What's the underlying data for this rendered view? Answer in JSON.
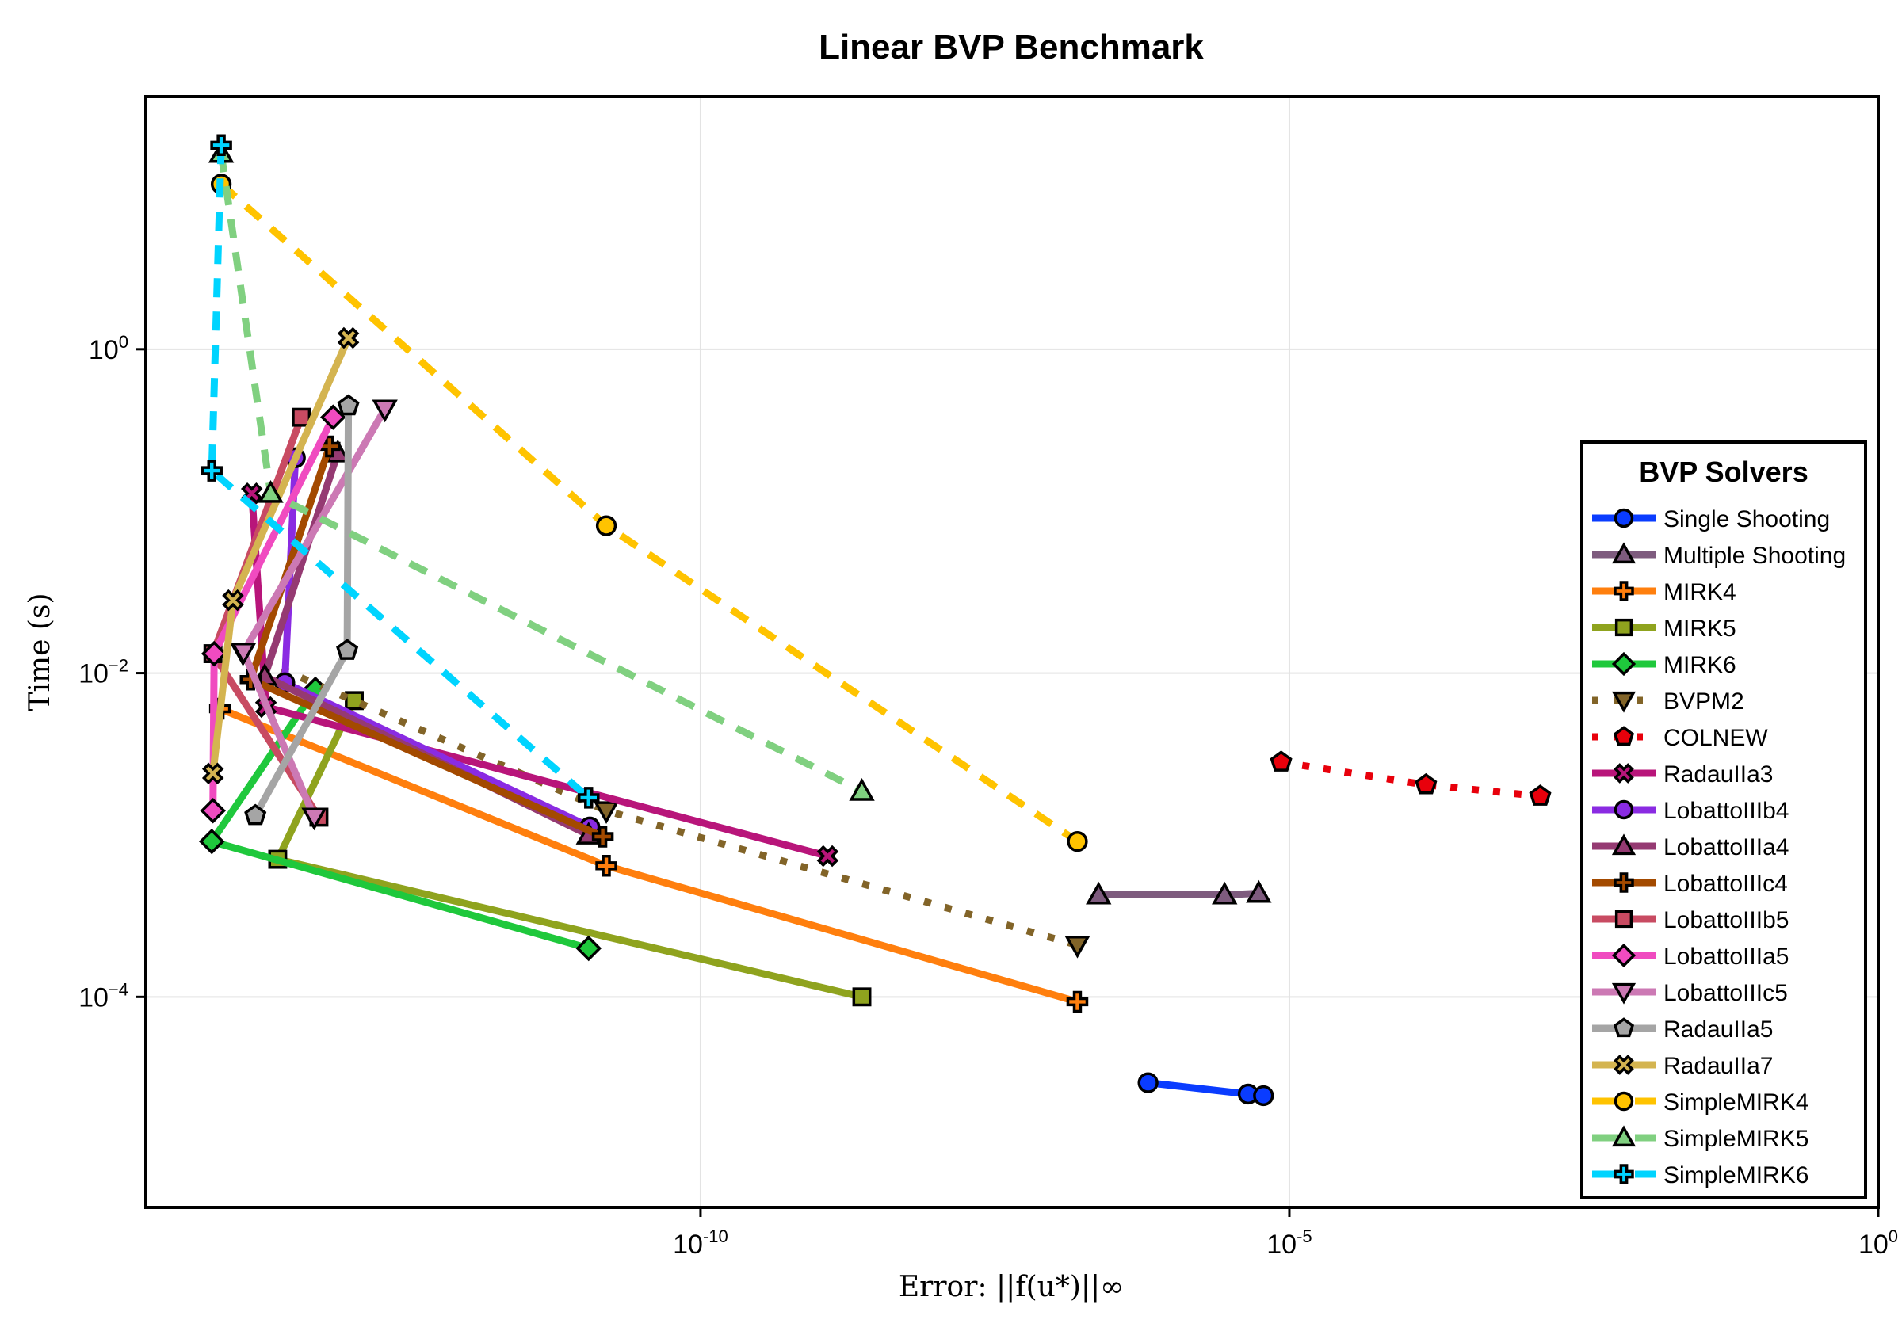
{
  "chart_data": {
    "type": "line",
    "title": "Linear BVP Benchmark",
    "xlabel": "Error: ||f(u*)||∞",
    "ylabel": "Time (s)",
    "xscale": "log10",
    "yscale": "log10",
    "xlim_log10": [
      -14.71,
      0
    ],
    "ylim_log10": [
      -5.3,
      1.56
    ],
    "x_ticks": [
      {
        "exp": -10,
        "base": "10",
        "sup": "-10"
      },
      {
        "exp": -5,
        "base": "10",
        "sup": "-5"
      },
      {
        "exp": 0,
        "base": "10",
        "sup": "0"
      }
    ],
    "y_ticks": [
      {
        "exp": 0,
        "base": "10",
        "sup": "0"
      },
      {
        "exp": -2,
        "base": "10",
        "sup": "−2"
      },
      {
        "exp": -4,
        "base": "10",
        "sup": "−4"
      }
    ],
    "grid": true,
    "legend": {
      "title": "BVP Solvers",
      "position": "right"
    },
    "series": [
      {
        "name": "Single Shooting",
        "color": "#0a3cff",
        "dash": "solid",
        "marker": "circle",
        "log10_x": [
          -6.2,
          -5.35,
          -5.22
        ],
        "log10_y": [
          -4.53,
          -4.6,
          -4.61
        ]
      },
      {
        "name": "Multiple Shooting",
        "color": "#7e5b7e",
        "dash": "solid",
        "marker": "triangle-up",
        "log10_x": [
          -6.62,
          -5.55,
          -5.26
        ],
        "log10_y": [
          -3.37,
          -3.37,
          -3.36
        ]
      },
      {
        "name": "MIRK4",
        "color": "#ff7f0e",
        "dash": "solid",
        "marker": "cross",
        "log10_x": [
          -14.08,
          -10.8,
          -6.8
        ],
        "log10_y": [
          -2.22,
          -3.19,
          -4.03
        ]
      },
      {
        "name": "MIRK5",
        "color": "#8fa31e",
        "dash": "solid",
        "marker": "square",
        "log10_x": [
          -12.94,
          -13.59,
          -8.63
        ],
        "log10_y": [
          -2.17,
          -3.15,
          -4.0
        ]
      },
      {
        "name": "MIRK6",
        "color": "#1fc83c",
        "dash": "solid",
        "marker": "diamond",
        "log10_x": [
          -13.27,
          -14.15,
          -10.95
        ],
        "log10_y": [
          -2.1,
          -3.04,
          -3.7
        ]
      },
      {
        "name": "BVPM2",
        "color": "#826428",
        "dash": "dot",
        "marker": "triangle-down",
        "log10_x": [
          -13.89,
          -10.8,
          -6.8
        ],
        "log10_y": [
          -1.87,
          -2.85,
          -3.68
        ]
      },
      {
        "name": "COLNEW",
        "color": "#e8000b",
        "dash": "dot",
        "marker": "pentagon",
        "log10_x": [
          -5.07,
          -3.84,
          -2.87
        ],
        "log10_y": [
          -2.55,
          -2.69,
          -2.76
        ]
      },
      {
        "name": "RadauIIa3",
        "color": "#b8157a",
        "dash": "solid",
        "marker": "x",
        "log10_x": [
          -13.81,
          -13.69,
          -8.92
        ],
        "log10_y": [
          -0.89,
          -2.21,
          -3.13
        ]
      },
      {
        "name": "LobattoIIIb4",
        "color": "#8a2be2",
        "dash": "solid",
        "marker": "circle",
        "log10_x": [
          -13.44,
          -13.53,
          -10.94
        ],
        "log10_y": [
          -0.67,
          -2.06,
          -2.95
        ]
      },
      {
        "name": "LobattoIIIa4",
        "color": "#953a72",
        "dash": "solid",
        "marker": "triangle-up",
        "log10_x": [
          -13.08,
          -13.7,
          -10.95
        ],
        "log10_y": [
          -0.64,
          -2.02,
          -3.0
        ]
      },
      {
        "name": "LobattoIIIc4",
        "color": "#a34a00",
        "dash": "solid",
        "marker": "cross",
        "log10_x": [
          -13.15,
          -13.82,
          -10.83
        ],
        "log10_y": [
          -0.6,
          -2.04,
          -3.01
        ]
      },
      {
        "name": "LobattoIIIb5",
        "color": "#c84b62",
        "dash": "solid",
        "marker": "square",
        "log10_x": [
          -13.39,
          -14.14,
          -13.24
        ],
        "log10_y": [
          -0.42,
          -1.88,
          -2.89
        ]
      },
      {
        "name": "LobattoIIIa5",
        "color": "#f04bc0",
        "dash": "solid",
        "marker": "diamond",
        "log10_x": [
          -13.12,
          -14.13,
          -14.14
        ],
        "log10_y": [
          -0.42,
          -1.88,
          -2.85
        ]
      },
      {
        "name": "LobattoIIIc5",
        "color": "#cc79b4",
        "dash": "solid",
        "marker": "triangle-down",
        "log10_x": [
          -12.68,
          -13.88,
          -13.28
        ],
        "log10_y": [
          -0.37,
          -1.87,
          -2.89
        ]
      },
      {
        "name": "RadauIIa5",
        "color": "#a5a5a5",
        "dash": "solid",
        "marker": "pentagon",
        "log10_x": [
          -12.99,
          -13.0,
          -13.78
        ],
        "log10_y": [
          -0.35,
          -1.86,
          -2.88
        ]
      },
      {
        "name": "RadauIIa7",
        "color": "#d4b450",
        "dash": "solid",
        "marker": "x",
        "log10_x": [
          -12.99,
          -13.97,
          -14.14
        ],
        "log10_y": [
          0.07,
          -1.55,
          -2.62
        ]
      },
      {
        "name": "SimpleMIRK4",
        "color": "#ffc300",
        "dash": "dash",
        "marker": "circle",
        "log10_x": [
          -14.07,
          -10.8,
          -6.8
        ],
        "log10_y": [
          1.02,
          -1.09,
          -3.04
        ]
      },
      {
        "name": "SimpleMIRK5",
        "color": "#80d080",
        "dash": "dash",
        "marker": "triangle-up",
        "log10_x": [
          -14.07,
          -13.65,
          -8.63
        ],
        "log10_y": [
          1.21,
          -0.89,
          -2.73
        ]
      },
      {
        "name": "SimpleMIRK6",
        "color": "#00d4ff",
        "dash": "dash",
        "marker": "cross",
        "log10_x": [
          -14.07,
          -14.15,
          -10.95
        ],
        "log10_y": [
          1.26,
          -0.75,
          -2.77
        ]
      }
    ]
  }
}
